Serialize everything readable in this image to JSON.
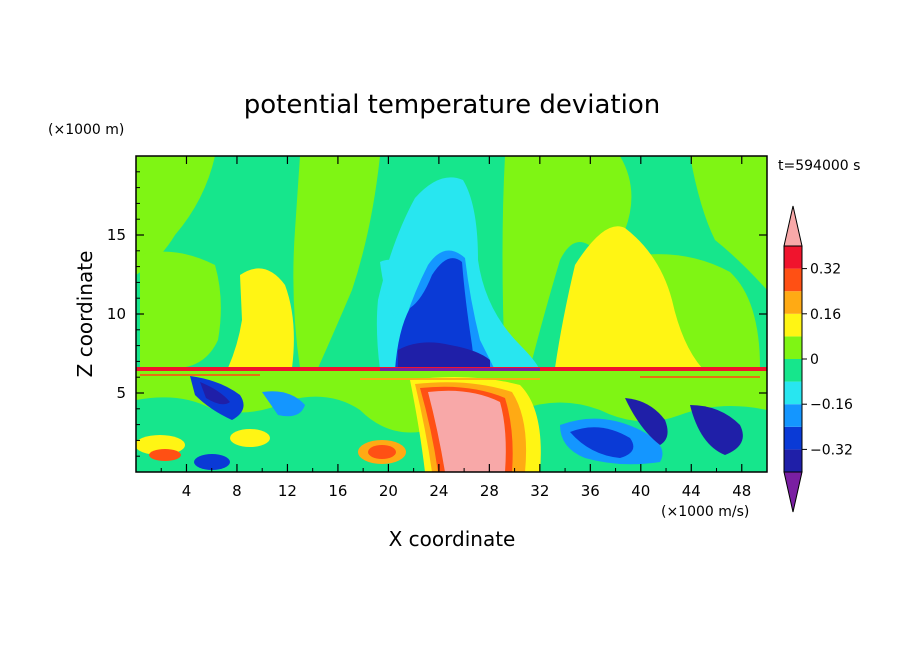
{
  "chart_data": {
    "type": "heatmap",
    "title": "potential temperature deviation",
    "xlabel": "X coordinate",
    "ylabel": "Z coordinate",
    "x_unit": "(×1000 m/s)",
    "y_unit": "(×1000 m)",
    "time_label": "t=594000 s",
    "xlim": [
      0,
      50
    ],
    "ylim": [
      0,
      20
    ],
    "x_ticks": [
      4,
      8,
      12,
      16,
      20,
      24,
      28,
      32,
      36,
      40,
      44,
      48
    ],
    "x_tick_labels": [
      "4",
      "8",
      "12",
      "16",
      "20",
      "24",
      "28",
      "32",
      "36",
      "40",
      "44",
      "48"
    ],
    "y_ticks": [
      5,
      10,
      15
    ],
    "y_tick_labels": [
      "5",
      "10",
      "15"
    ],
    "colorbar": {
      "levels": [
        -0.4,
        -0.32,
        -0.24,
        -0.16,
        -0.08,
        0,
        0.08,
        0.16,
        0.24,
        0.32,
        0.4
      ],
      "colors": [
        "#7a1fa2",
        "#1f1fa8",
        "#0a3ad6",
        "#1496ff",
        "#28e6f0",
        "#16e68c",
        "#7ff514",
        "#fff514",
        "#ffaa14",
        "#ff5014",
        "#f0142d",
        "#f8a8a8"
      ],
      "tick_labels": [
        "0.32",
        "0.16",
        "0",
        "−0.16",
        "−0.32"
      ],
      "tick_values": [
        0.32,
        0.16,
        0,
        -0.16,
        -0.32
      ]
    },
    "regions_note": "upper layer (z>6.7): mostly green; yellow positive anomalies near x≈6-11 and x≈33-43; cyan/blue negative column centered x≈24 up to z≈18; lower layer (z<6.7): turbulent mixed anomalies, strong positive (pink) plume near x≈24-30"
  }
}
